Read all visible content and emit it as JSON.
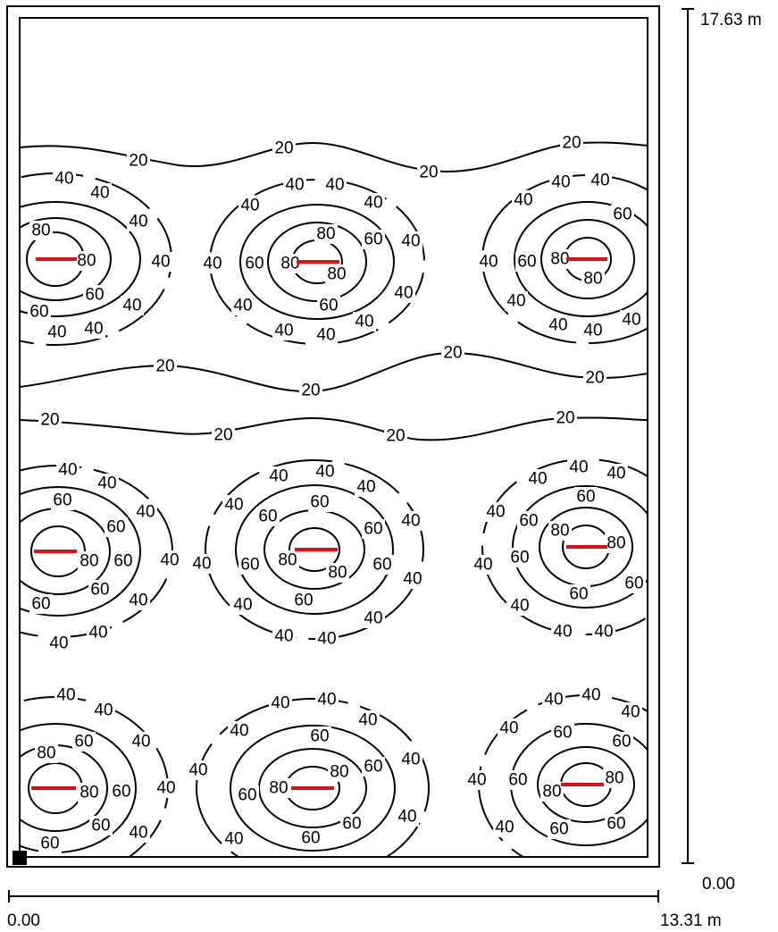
{
  "dimensions": {
    "width_start": "0.00",
    "width_end": "13.31 m",
    "height_start": "0.00",
    "height_end": "17.63 m"
  },
  "isolines": {
    "levels": [
      "20",
      "40",
      "60",
      "80"
    ]
  },
  "luminaires": {
    "count": 9,
    "color": "#dd1111"
  },
  "colors": {
    "contour": "#000000",
    "frame": "#000000",
    "luminaire": "#dd1111"
  }
}
